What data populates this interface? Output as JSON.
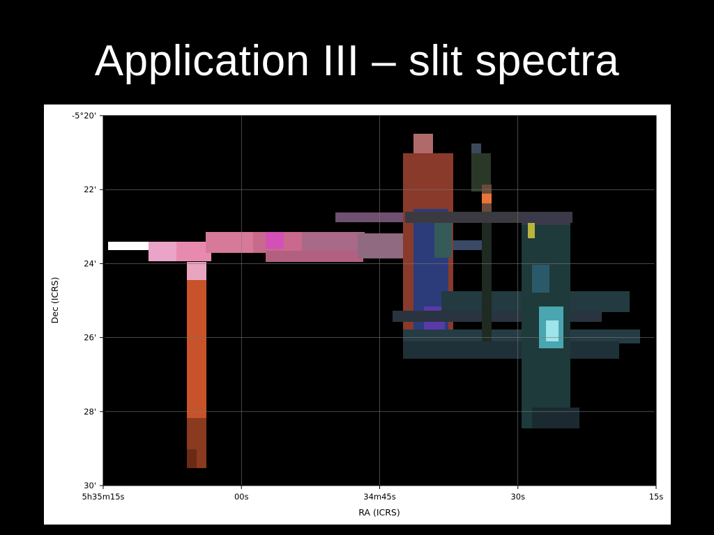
{
  "slide": {
    "title": "Application III – slit spectra"
  },
  "chart_data": {
    "type": "heatmap",
    "title": "",
    "xlabel": "RA (ICRS)",
    "ylabel": "Dec (ICRS)",
    "grid": true,
    "xaxis": {
      "direction": "decreasing-right",
      "range_label": [
        "5h35m15s",
        "34m15s"
      ],
      "ticks": [
        {
          "pos": 0.0,
          "label": "5h35m15s"
        },
        {
          "pos": 0.25,
          "label": "00s"
        },
        {
          "pos": 0.5,
          "label": "34m45s"
        },
        {
          "pos": 0.75,
          "label": "30s"
        },
        {
          "pos": 1.0,
          "label": "15s"
        }
      ]
    },
    "yaxis": {
      "range": [
        "-5°20'",
        "-5°30'"
      ],
      "ticks": [
        {
          "pos": 0.0,
          "label": "-5°20'"
        },
        {
          "pos": 0.2,
          "label": "22'"
        },
        {
          "pos": 0.4,
          "label": "24'"
        },
        {
          "pos": 0.6,
          "label": "26'"
        },
        {
          "pos": 0.8,
          "label": "28'"
        },
        {
          "pos": 1.0,
          "label": "30'"
        }
      ]
    }
  }
}
